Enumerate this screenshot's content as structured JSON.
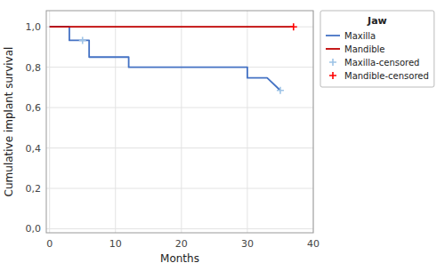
{
  "chart_data": {
    "type": "line",
    "title": "Jaw",
    "xlabel": "Months",
    "ylabel": "Cumulative implant survival",
    "xlim": [
      -0.5,
      40
    ],
    "ylim": [
      -0.02,
      1.08
    ],
    "xticks": [
      0,
      10,
      20,
      30,
      40
    ],
    "yticks": [
      {
        "value": 0.0,
        "label": "0,0"
      },
      {
        "value": 0.2,
        "label": "0,2"
      },
      {
        "value": 0.4,
        "label": "0,4"
      },
      {
        "value": 0.6,
        "label": "0,6"
      },
      {
        "value": 0.8,
        "label": "0,8"
      },
      {
        "value": 1.0,
        "label": "1,0"
      }
    ],
    "grid": true,
    "legend": "upper right",
    "series": [
      {
        "name": "Maxilla",
        "type": "line",
        "color": "#4472C4",
        "x": [
          0,
          3,
          3,
          6,
          6,
          12,
          12,
          30,
          30,
          33,
          33,
          35
        ],
        "values": [
          1.0,
          1.0,
          0.933,
          0.933,
          0.85,
          0.85,
          0.8,
          0.8,
          0.747,
          0.747,
          0.747,
          0.685
        ]
      },
      {
        "name": "Mandible",
        "type": "line",
        "color": "#C00000",
        "x": [
          0,
          37
        ],
        "values": [
          1.0,
          1.0
        ]
      },
      {
        "name": "Maxilla-censored",
        "type": "scatter",
        "marker": "plus",
        "color": "#9DC3E6",
        "x": [
          5,
          35
        ],
        "values": [
          0.933,
          0.685
        ]
      },
      {
        "name": "Mandible-censored",
        "type": "scatter",
        "marker": "plus",
        "color": "#FF0000",
        "x": [
          37
        ],
        "values": [
          1.0
        ]
      }
    ]
  }
}
